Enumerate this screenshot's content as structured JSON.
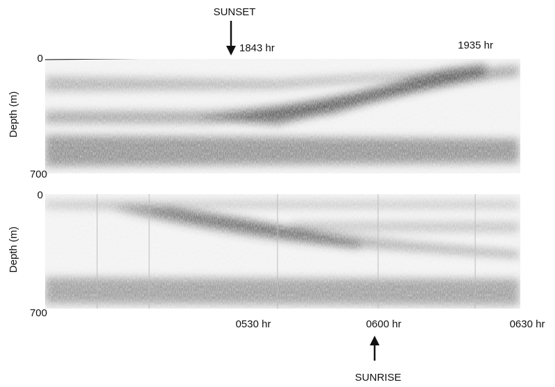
{
  "top_panel": {
    "annotation_top": "SUNSET",
    "time_left": "1843 hr",
    "time_right": "1935 hr",
    "y_label": "Depth (m)",
    "y_top": "0",
    "y_bottom": "700"
  },
  "bottom_panel": {
    "y_label": "Depth (m)",
    "y_top": "0",
    "y_bottom": "700",
    "times": [
      "0530 hr",
      "0600 hr",
      "0630 hr"
    ],
    "annotation_bottom": "SUNRISE"
  }
}
